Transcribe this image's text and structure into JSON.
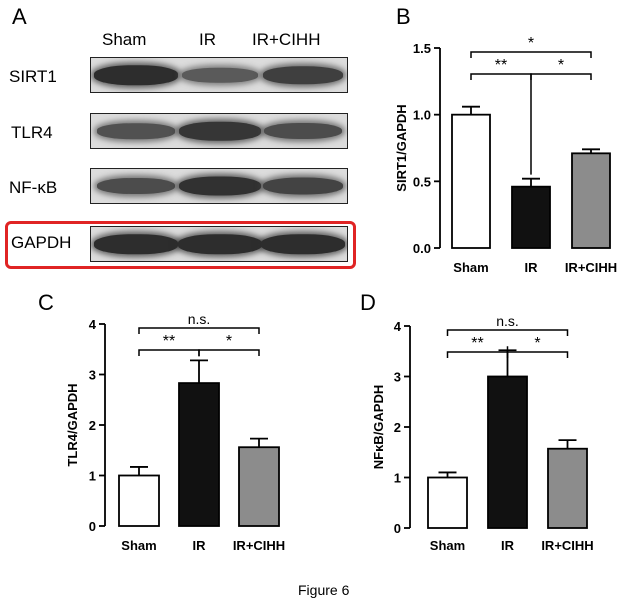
{
  "figure_caption": "Figure 6",
  "panel_a": {
    "letter": "A",
    "lanes": [
      "Sham",
      "IR",
      "IR+CIHH"
    ],
    "blots": [
      {
        "label": "SIRT1",
        "intensities": [
          0.95,
          0.45,
          0.75
        ]
      },
      {
        "label": "TLR4",
        "intensities": [
          0.55,
          0.85,
          0.6
        ]
      },
      {
        "label": "NF-κB",
        "intensities": [
          0.6,
          0.9,
          0.7
        ]
      },
      {
        "label": "GAPDH",
        "intensities": [
          0.95,
          0.95,
          0.95
        ],
        "highlight_color": "#e02424"
      }
    ]
  },
  "chart_data": [
    {
      "panel": "B",
      "type": "bar",
      "categories": [
        "Sham",
        "IR",
        "IR+CIHH"
      ],
      "values": [
        1.0,
        0.46,
        0.71
      ],
      "errors": [
        0.06,
        0.06,
        0.03
      ],
      "ylabel": "SIRT1/GAPDH",
      "ylim": [
        0,
        1.5
      ],
      "yticks": [
        "0.0",
        "0.5",
        "1.0",
        "1.5"
      ],
      "ytick_values": [
        0,
        0.5,
        1.0,
        1.5
      ],
      "bar_colors": [
        "#ffffff",
        "#111111",
        "#8c8c8c"
      ],
      "brackets": [
        {
          "from": 0,
          "to": 2,
          "label": "*"
        },
        {
          "from": 0,
          "to": 1,
          "label": "**"
        },
        {
          "from": 1,
          "to": 2,
          "label": "*"
        }
      ]
    },
    {
      "panel": "C",
      "type": "bar",
      "categories": [
        "Sham",
        "IR",
        "IR+CIHH"
      ],
      "values": [
        1.0,
        2.83,
        1.56
      ],
      "errors": [
        0.17,
        0.45,
        0.17
      ],
      "ylabel": "TLR4/GAPDH",
      "ylim": [
        0,
        4
      ],
      "yticks": [
        "0",
        "1",
        "2",
        "3",
        "4"
      ],
      "ytick_values": [
        0,
        1,
        2,
        3,
        4
      ],
      "bar_colors": [
        "#ffffff",
        "#111111",
        "#8c8c8c"
      ],
      "brackets": [
        {
          "from": 0,
          "to": 2,
          "label": "n.s."
        },
        {
          "from": 0,
          "to": 1,
          "label": "**"
        },
        {
          "from": 1,
          "to": 2,
          "label": "*"
        }
      ]
    },
    {
      "panel": "D",
      "type": "bar",
      "categories": [
        "Sham",
        "IR",
        "IR+CIHH"
      ],
      "values": [
        1.0,
        3.0,
        1.57
      ],
      "errors": [
        0.1,
        0.52,
        0.17
      ],
      "ylabel": "NFκB/GAPDH",
      "ylim": [
        0,
        4
      ],
      "yticks": [
        "0",
        "1",
        "2",
        "3",
        "4"
      ],
      "ytick_values": [
        0,
        1,
        2,
        3,
        4
      ],
      "bar_colors": [
        "#ffffff",
        "#111111",
        "#8c8c8c"
      ],
      "brackets": [
        {
          "from": 0,
          "to": 2,
          "label": "n.s."
        },
        {
          "from": 0,
          "to": 1,
          "label": "**"
        },
        {
          "from": 1,
          "to": 2,
          "label": "*"
        }
      ]
    }
  ]
}
